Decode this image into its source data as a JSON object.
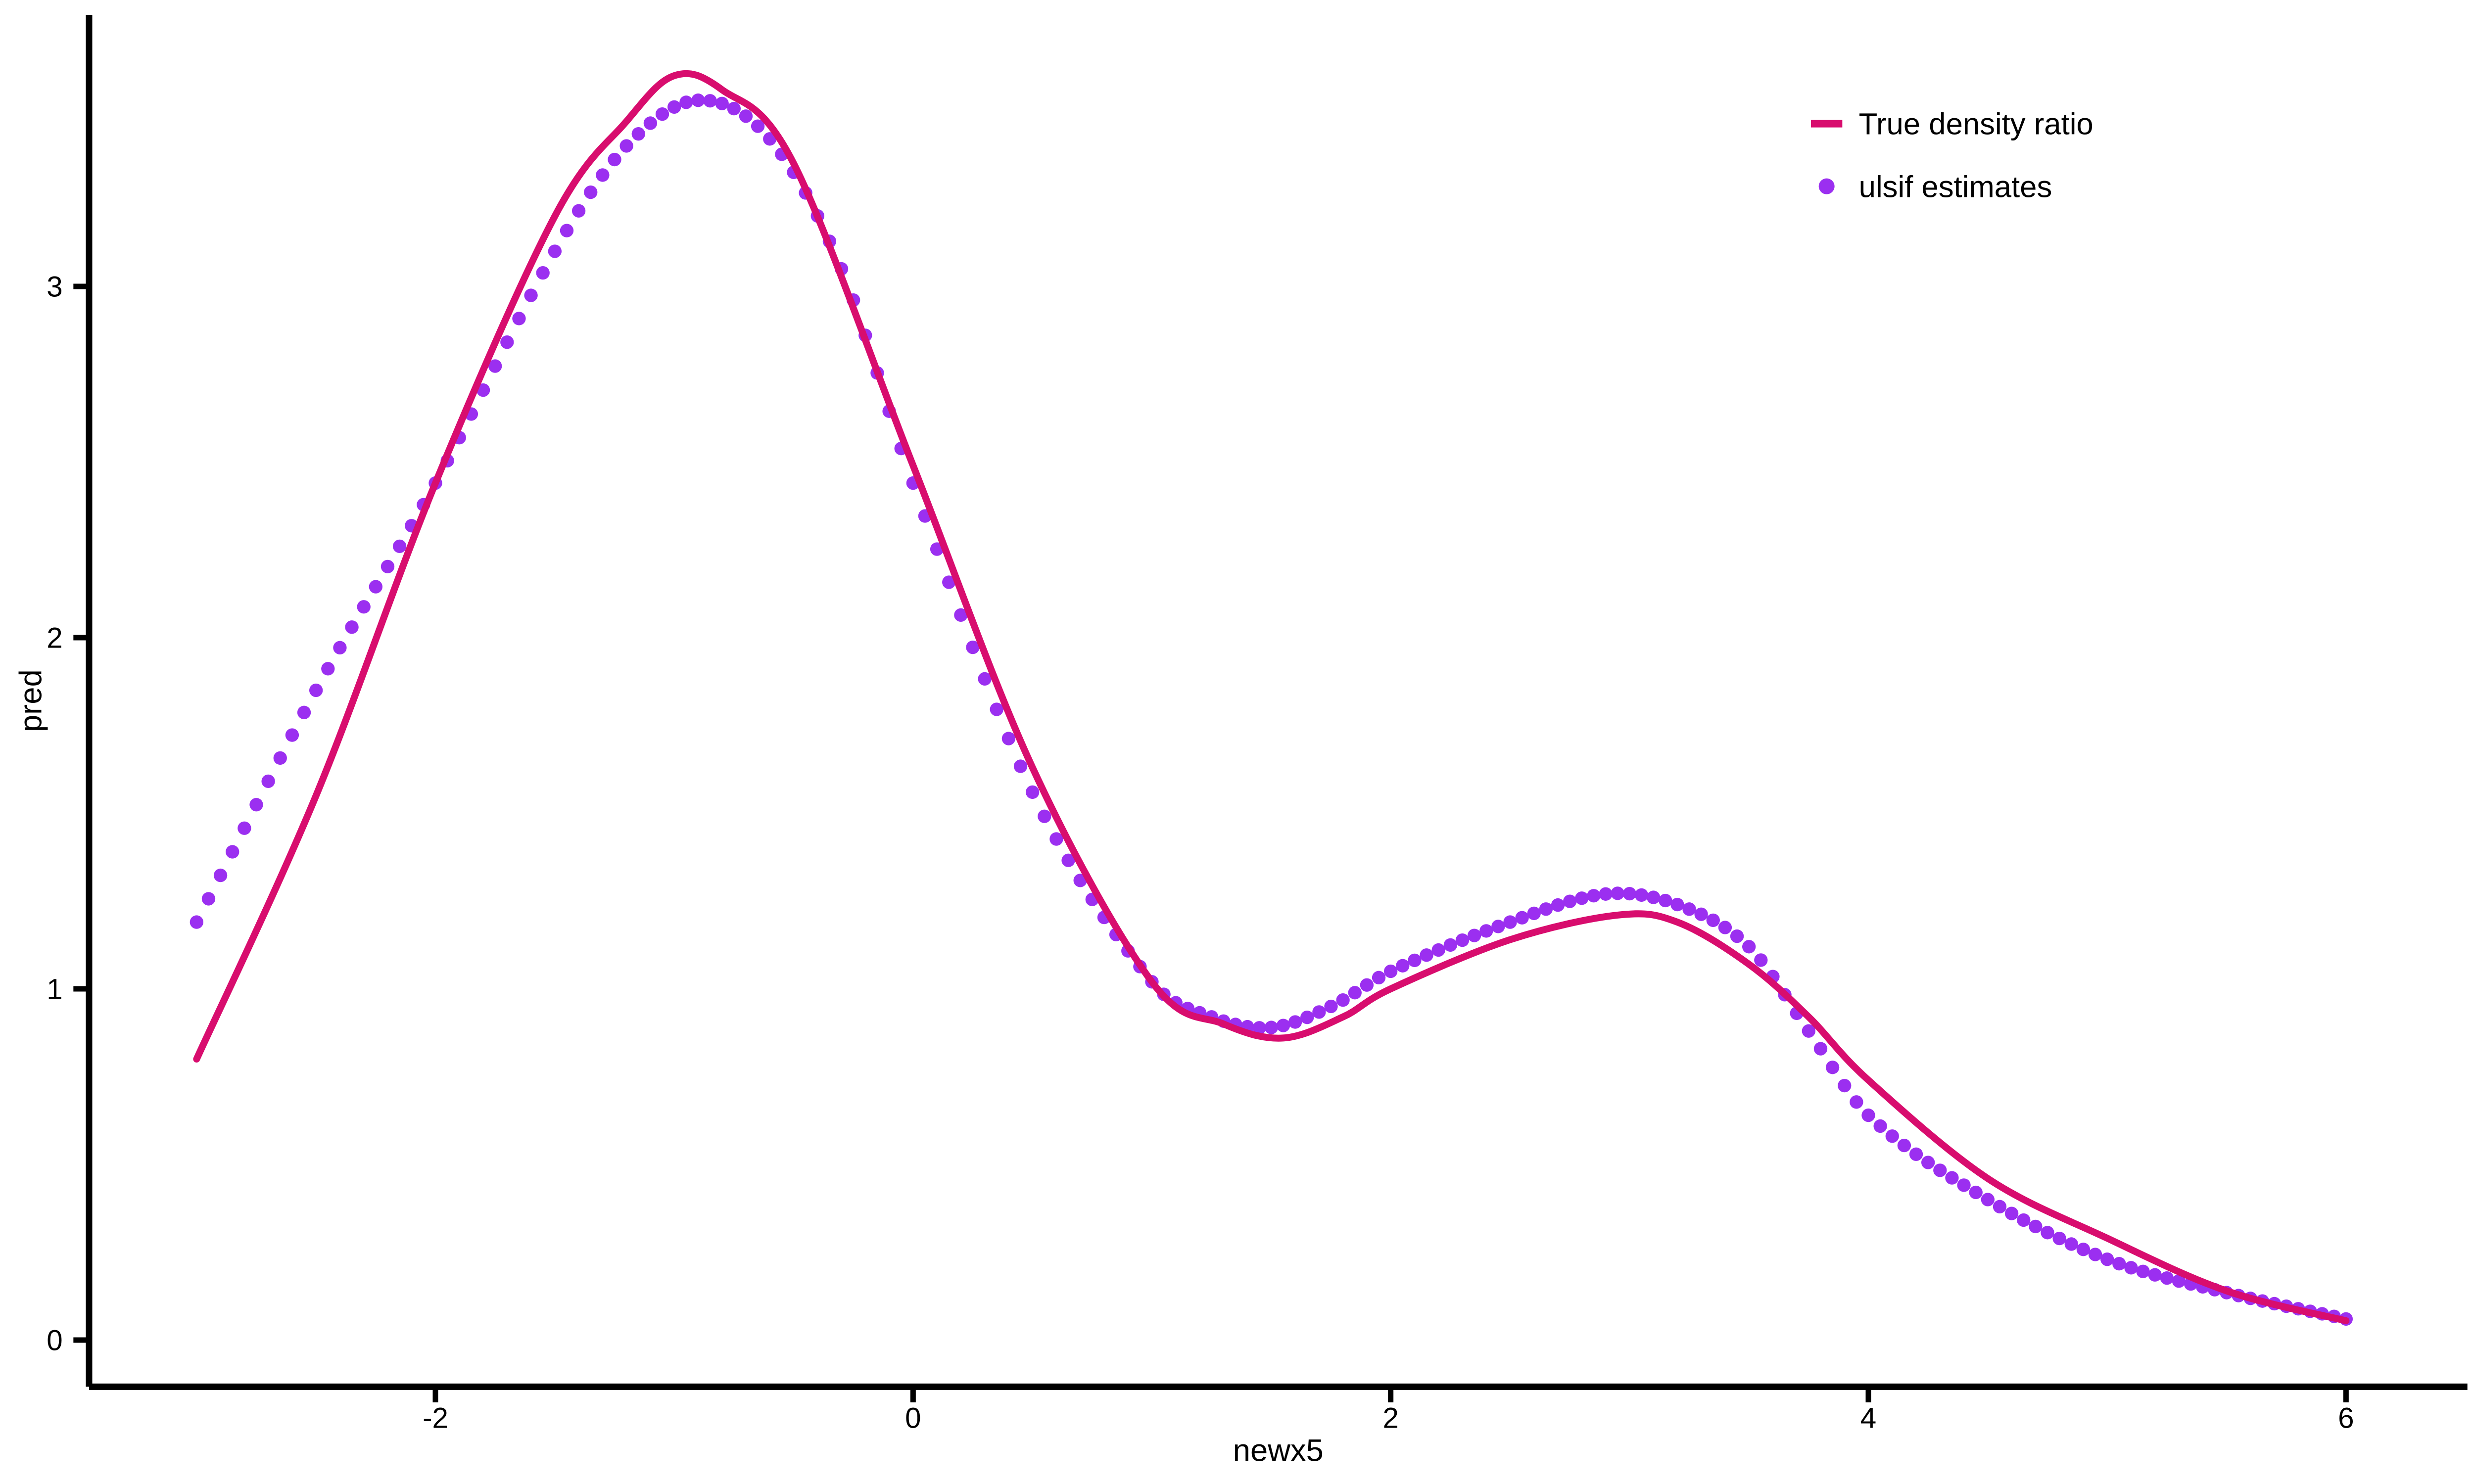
{
  "figure": {
    "background": "#FFFFFF",
    "x_axis_label": "newx5",
    "y_axis_label": "pred",
    "legend": {
      "items": [
        {
          "label": "True density ratio",
          "marker": "line",
          "color": "#D80D6E"
        },
        {
          "label": "ulsif estimates",
          "marker": "point",
          "color": "#9B2FF0"
        }
      ]
    }
  },
  "chart_data": {
    "type": "line+scatter",
    "title": "",
    "xlabel": "newx5",
    "ylabel": "pred",
    "x_tick_values": [
      -2,
      0,
      2,
      4,
      6
    ],
    "x_tick_labels": [
      "-2",
      "0",
      "2",
      "4",
      "6"
    ],
    "y_tick_values": [
      0,
      1,
      2,
      3
    ],
    "y_tick_labels": [
      "0",
      "1",
      "2",
      "3"
    ],
    "xlim": [
      -3.45,
      6.51
    ],
    "ylim": [
      -0.135,
      3.77
    ],
    "grid": false,
    "legend_position": "top-right-inside",
    "series": [
      {
        "name": "True density ratio",
        "type": "line",
        "color": "#D80D6E",
        "line_width": 4.2,
        "anchors": [
          [
            -3.0,
            0.8
          ],
          [
            -2.5,
            1.55
          ],
          [
            -2.0,
            2.44
          ],
          [
            -1.5,
            3.2
          ],
          [
            -1.2,
            3.47
          ],
          [
            -1.0,
            3.6
          ],
          [
            -0.8,
            3.56
          ],
          [
            -0.5,
            3.35
          ],
          [
            0.0,
            2.49
          ],
          [
            0.5,
            1.63
          ],
          [
            1.0,
            1.02
          ],
          [
            1.3,
            0.9
          ],
          [
            1.55,
            0.86
          ],
          [
            1.8,
            0.92
          ],
          [
            2.0,
            1.0
          ],
          [
            2.5,
            1.14
          ],
          [
            2.95,
            1.21
          ],
          [
            3.2,
            1.19
          ],
          [
            3.5,
            1.07
          ],
          [
            3.75,
            0.92
          ],
          [
            4.0,
            0.74
          ],
          [
            4.5,
            0.46
          ],
          [
            5.0,
            0.29
          ],
          [
            5.5,
            0.14
          ],
          [
            6.0,
            0.055
          ]
        ]
      },
      {
        "name": "ulsif estimates",
        "type": "scatter",
        "color": "#9B2FF0",
        "point_radius": 4.1,
        "x_start": -3.0,
        "x_end": 6.0,
        "x_step": 0.05,
        "anchors": [
          [
            -3.0,
            1.19
          ],
          [
            -2.5,
            1.85
          ],
          [
            -2.0,
            2.44
          ],
          [
            -1.5,
            3.1
          ],
          [
            -1.2,
            3.4
          ],
          [
            -0.9,
            3.53
          ],
          [
            -0.6,
            3.42
          ],
          [
            -0.3,
            3.05
          ],
          [
            0.0,
            2.44
          ],
          [
            0.5,
            1.56
          ],
          [
            1.0,
            1.02
          ],
          [
            1.25,
            0.92
          ],
          [
            1.5,
            0.89
          ],
          [
            1.75,
            0.95
          ],
          [
            2.0,
            1.05
          ],
          [
            2.5,
            1.19
          ],
          [
            2.9,
            1.27
          ],
          [
            3.2,
            1.24
          ],
          [
            3.5,
            1.12
          ],
          [
            3.75,
            0.88
          ],
          [
            4.0,
            0.64
          ],
          [
            4.5,
            0.4
          ],
          [
            5.0,
            0.23
          ],
          [
            5.5,
            0.135
          ],
          [
            6.0,
            0.06
          ]
        ]
      }
    ]
  }
}
